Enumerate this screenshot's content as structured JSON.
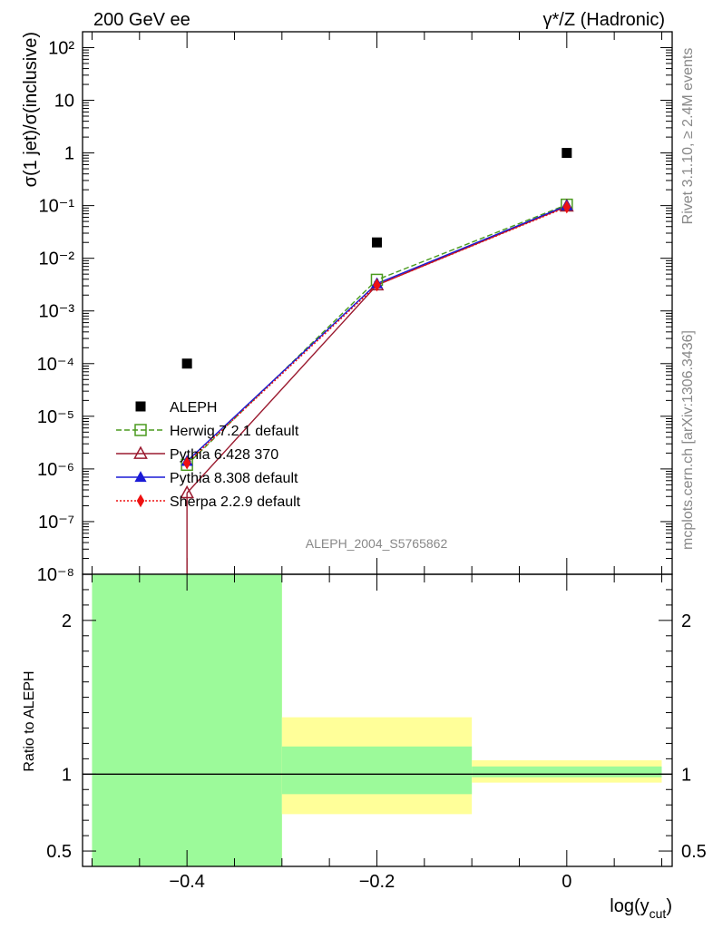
{
  "header": {
    "left_label": "200 GeV ee",
    "right_label": "γ*/Z (Hadronic)"
  },
  "side": {
    "rivet": "Rivet 3.1.10, ≥ 2.4M events",
    "mcplots": "mcplots.cern.ch [arXiv:1306.3436]"
  },
  "analysis_id": "ALEPH_2004_S5765862",
  "chart_data": [
    {
      "type": "scatter",
      "panel": "main",
      "ylabel": "σ(1 jet)/σ(inclusive)",
      "yscale": "log",
      "ylim": [
        1e-08,
        200
      ],
      "xlim": [
        -0.51,
        0.111
      ],
      "x": [
        -0.4,
        -0.2,
        0.0
      ],
      "y_tick_labels": [
        "10⁻⁸",
        "10⁻⁷",
        "10⁻⁶",
        "10⁻⁵",
        "10⁻⁴",
        "10⁻³",
        "10⁻²",
        "10⁻¹",
        "1",
        "10",
        "10²"
      ],
      "legend_position": "lower-left",
      "series": [
        {
          "name": "ALEPH",
          "marker": "square-filled",
          "color": "#000000",
          "values": [
            0.0001,
            0.02,
            1.0
          ]
        },
        {
          "name": "Herwig 7.2.1 default",
          "marker": "square-open",
          "line": "dashed",
          "color": "#4a9a1e",
          "values": [
            1.2e-06,
            0.0039,
            0.104
          ]
        },
        {
          "name": "Pythia 6.428 370",
          "marker": "triangle-open",
          "line": "solid",
          "color": "#9b1b30",
          "values": [
            3.5e-07,
            0.0031,
            0.097
          ]
        },
        {
          "name": "Pythia 8.308 default",
          "marker": "triangle-filled",
          "line": "solid",
          "color": "#1a1ad6",
          "values": [
            1.4e-06,
            0.0033,
            0.1
          ]
        },
        {
          "name": "Sherpa 2.2.9 default",
          "marker": "diamond-filled",
          "line": "dotted",
          "color": "#ee1111",
          "values": [
            1.3e-06,
            0.0031,
            0.094
          ]
        }
      ]
    },
    {
      "type": "bar",
      "panel": "ratio",
      "ylabel": "Ratio to ALEPH",
      "xlabel": "log(y_cut)",
      "ylim": [
        0.4,
        2.3
      ],
      "xlim": [
        -0.51,
        0.111
      ],
      "x_tick_labels": [
        "−0.4",
        "−0.2",
        "0"
      ],
      "y_tick_labels": [
        "0.5",
        "1",
        "2"
      ],
      "bins": [
        {
          "x_low": -0.5,
          "x_high": -0.3,
          "stat_low": 0.4,
          "stat_high": 2.3,
          "total_low": 0.4,
          "total_high": 2.3
        },
        {
          "x_low": -0.3,
          "x_high": -0.1,
          "stat_low": 0.87,
          "stat_high": 1.18,
          "total_low": 0.74,
          "total_high": 1.37
        },
        {
          "x_low": -0.1,
          "x_high": 0.1,
          "stat_low": 0.98,
          "stat_high": 1.05,
          "total_low": 0.945,
          "total_high": 1.09
        }
      ],
      "reference_line": 1.0,
      "band_colors": {
        "stat": "#9cfa9a",
        "total": "#ffff99"
      }
    }
  ]
}
